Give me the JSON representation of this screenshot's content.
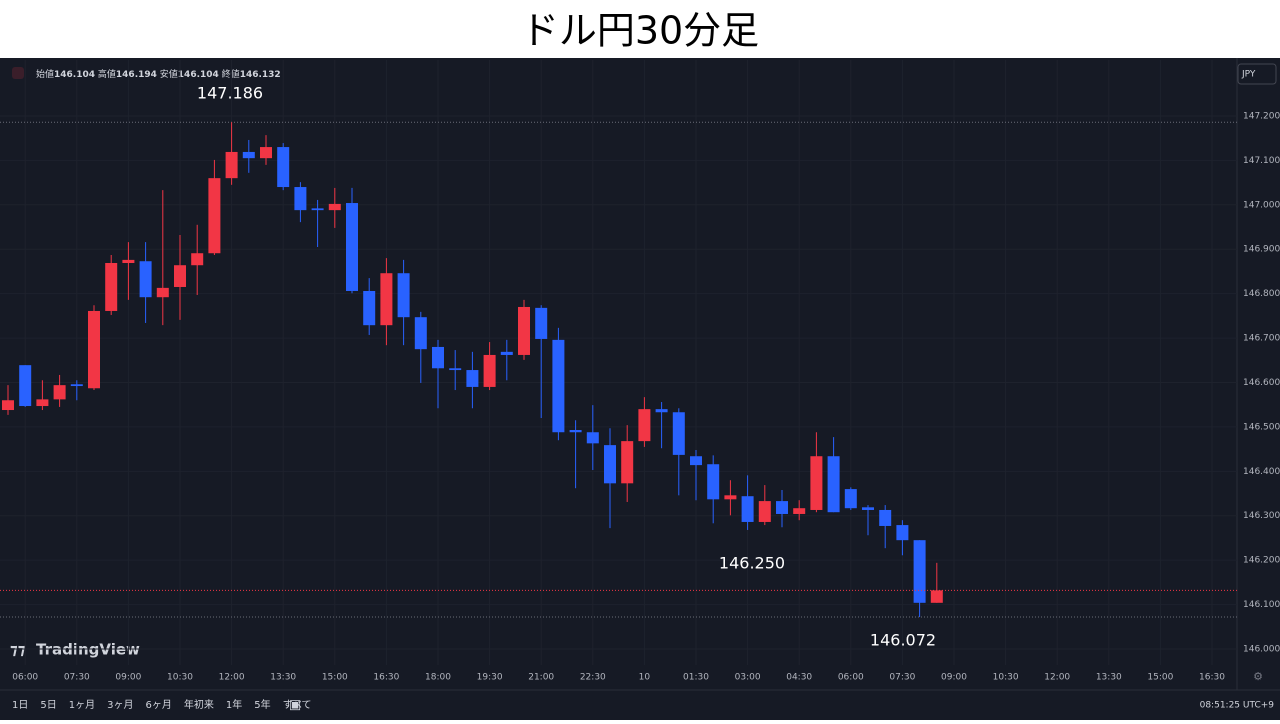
{
  "chart_data": {
    "type": "candlestick",
    "title": "ドル円30分足",
    "ohlc_header": [
      {
        "name": "始値",
        "value": "146.104"
      },
      {
        "name": "高値",
        "value": "146.194"
      },
      {
        "name": "安値",
        "value": "146.104"
      },
      {
        "name": "終値",
        "value": "146.132"
      }
    ],
    "currency": "JPY",
    "brand": "TradingView",
    "ranges": [
      "1日",
      "5日",
      "1ヶ月",
      "3ヶ月",
      "6ヶ月",
      "年初来",
      "1年",
      "5年",
      "すべて"
    ],
    "clock": "08:51:25 UTC+9",
    "annotations": [
      {
        "value": 147.186,
        "label": "147.186"
      },
      {
        "value": 146.25,
        "label": "146.250"
      },
      {
        "value": 146.072,
        "label": "146.072"
      }
    ],
    "categories": [
      null,
      "06:00",
      null,
      null,
      "07:30",
      null,
      null,
      "09:00",
      null,
      null,
      "10:30",
      null,
      null,
      "12:00",
      null,
      null,
      "13:30",
      null,
      null,
      "15:00",
      null,
      null,
      "16:30",
      null,
      null,
      "18:00",
      null,
      null,
      "19:30",
      null,
      null,
      "21:00",
      null,
      null,
      "22:30",
      null,
      null,
      "10",
      null,
      null,
      "01:30",
      null,
      null,
      "03:00",
      null,
      null,
      "04:30",
      null,
      null,
      "06:00",
      null,
      null,
      "07:30",
      null,
      null,
      "09:00",
      null,
      null,
      "10:30",
      null,
      null,
      "12:00",
      null,
      null,
      "13:30",
      null,
      null,
      "15:00",
      null,
      null,
      "16:30",
      null
    ],
    "open": [
      146.538,
      146.639,
      146.547,
      146.562,
      146.596,
      146.587,
      146.761,
      146.869,
      146.873,
      146.792,
      146.815,
      146.864,
      146.891,
      147.06,
      147.119,
      147.105,
      147.13,
      147.04,
      146.992,
      146.988,
      147.004,
      146.806,
      146.729,
      146.846,
      146.747,
      146.68,
      146.632,
      146.628,
      146.59,
      146.669,
      146.662,
      146.768,
      146.696,
      146.493,
      146.488,
      146.459,
      146.373,
      146.468,
      146.54,
      146.533,
      146.434,
      146.416,
      146.337,
      146.344,
      146.286,
      146.333,
      146.304,
      146.313,
      146.434,
      146.36,
      146.319,
      146.313,
      146.279,
      146.245,
      146.104,
      null,
      null,
      null,
      null,
      null,
      null,
      null,
      null,
      null,
      null,
      null,
      null,
      null,
      null,
      null,
      null,
      null
    ],
    "high": [
      146.594,
      146.639,
      146.605,
      146.617,
      146.605,
      146.774,
      146.887,
      146.916,
      146.916,
      147.033,
      146.932,
      146.955,
      147.101,
      147.186,
      147.146,
      147.157,
      147.139,
      147.051,
      147.011,
      147.038,
      147.038,
      146.835,
      146.88,
      146.876,
      146.759,
      146.696,
      146.673,
      146.669,
      146.691,
      146.696,
      146.786,
      146.774,
      146.723,
      146.515,
      146.549,
      146.497,
      146.504,
      146.567,
      146.556,
      146.542,
      146.448,
      146.436,
      146.38,
      146.391,
      146.369,
      146.358,
      146.335,
      146.488,
      146.477,
      146.364,
      146.324,
      146.324,
      146.29,
      146.245,
      146.194,
      null,
      null,
      null,
      null,
      null,
      null,
      null,
      null,
      null,
      null,
      null,
      null,
      null,
      null,
      null,
      null,
      null
    ],
    "low": [
      146.527,
      146.545,
      146.538,
      146.545,
      146.56,
      146.583,
      146.752,
      146.786,
      146.734,
      146.729,
      146.741,
      146.797,
      146.887,
      147.045,
      147.072,
      147.09,
      147.033,
      146.961,
      146.905,
      146.948,
      146.801,
      146.707,
      146.684,
      146.684,
      146.599,
      146.542,
      146.583,
      146.542,
      146.583,
      146.605,
      146.651,
      146.52,
      146.47,
      146.362,
      146.403,
      146.272,
      146.331,
      146.455,
      146.452,
      146.346,
      146.335,
      146.283,
      146.301,
      146.268,
      146.279,
      146.274,
      146.29,
      146.308,
      146.308,
      146.313,
      146.256,
      146.227,
      146.211,
      146.072,
      146.104,
      null,
      null,
      null,
      null,
      null,
      null,
      null,
      null,
      null,
      null,
      null,
      null,
      null,
      null,
      null,
      null,
      null
    ],
    "close": [
      146.56,
      146.547,
      146.562,
      146.594,
      146.592,
      146.761,
      146.869,
      146.876,
      146.792,
      146.813,
      146.864,
      146.891,
      147.06,
      147.119,
      147.105,
      147.13,
      147.04,
      146.988,
      146.988,
      147.002,
      146.806,
      146.729,
      146.846,
      146.747,
      146.675,
      146.632,
      146.628,
      146.59,
      146.662,
      146.662,
      146.77,
      146.698,
      146.488,
      146.488,
      146.463,
      146.373,
      146.468,
      146.54,
      146.533,
      146.437,
      146.414,
      146.337,
      146.346,
      146.286,
      146.333,
      146.304,
      146.317,
      146.434,
      146.308,
      146.317,
      146.313,
      146.277,
      146.245,
      146.104,
      146.132,
      null,
      null,
      null,
      null,
      null,
      null,
      null,
      null,
      null,
      null,
      null,
      null,
      null,
      null,
      null,
      null,
      null
    ],
    "up_color": "#f23645",
    "down_color": "#2962ff",
    "ylim": [
      145.964,
      147.326
    ],
    "yticks": [
      {
        "value": 146.0,
        "label": "146.000"
      },
      {
        "value": 146.1,
        "label": "146.100"
      },
      {
        "value": 146.2,
        "label": "146.200"
      },
      {
        "value": 146.3,
        "label": "146.300"
      },
      {
        "value": 146.4,
        "label": "146.400"
      },
      {
        "value": 146.5,
        "label": "146.500"
      },
      {
        "value": 146.6,
        "label": "146.600"
      },
      {
        "value": 146.7,
        "label": "146.700"
      },
      {
        "value": 146.8,
        "label": "146.800"
      },
      {
        "value": 146.9,
        "label": "146.900"
      },
      {
        "value": 147.0,
        "label": "147.000"
      },
      {
        "value": 147.1,
        "label": "147.100"
      },
      {
        "value": 147.2,
        "label": "147.200"
      }
    ],
    "grid": true
  }
}
